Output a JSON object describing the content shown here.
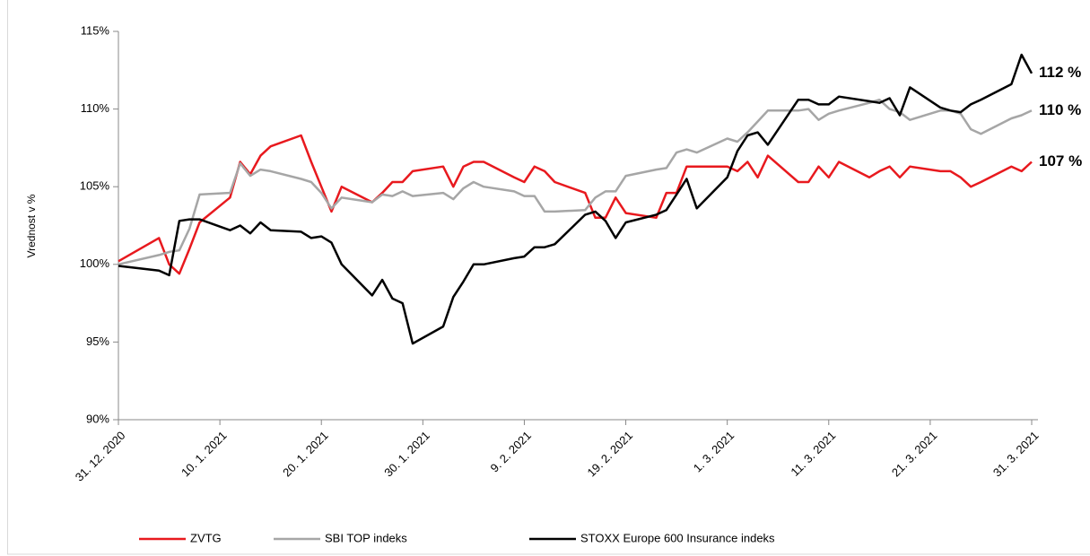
{
  "chart_data": {
    "type": "line",
    "y_label": "Vrednost v %",
    "x": [
      "2020-12-31",
      "2021-01-04",
      "2021-01-05",
      "2021-01-06",
      "2021-01-07",
      "2021-01-08",
      "2021-01-11",
      "2021-01-12",
      "2021-01-13",
      "2021-01-14",
      "2021-01-15",
      "2021-01-18",
      "2021-01-19",
      "2021-01-20",
      "2021-01-21",
      "2021-01-22",
      "2021-01-25",
      "2021-01-26",
      "2021-01-27",
      "2021-01-28",
      "2021-01-29",
      "2021-02-01",
      "2021-02-02",
      "2021-02-03",
      "2021-02-04",
      "2021-02-05",
      "2021-02-08",
      "2021-02-09",
      "2021-02-10",
      "2021-02-11",
      "2021-02-12",
      "2021-02-15",
      "2021-02-16",
      "2021-02-17",
      "2021-02-18",
      "2021-02-19",
      "2021-02-22",
      "2021-02-23",
      "2021-02-24",
      "2021-02-25",
      "2021-02-26",
      "2021-03-01",
      "2021-03-02",
      "2021-03-03",
      "2021-03-04",
      "2021-03-05",
      "2021-03-08",
      "2021-03-09",
      "2021-03-10",
      "2021-03-11",
      "2021-03-12",
      "2021-03-15",
      "2021-03-16",
      "2021-03-17",
      "2021-03-18",
      "2021-03-19",
      "2021-03-22",
      "2021-03-23",
      "2021-03-24",
      "2021-03-25",
      "2021-03-26",
      "2021-03-29",
      "2021-03-30",
      "2021-03-31"
    ],
    "series": [
      {
        "name": "ZVTG",
        "color": "#e8191e",
        "values": [
          100.2,
          101.7,
          100,
          99.4,
          101,
          102.7,
          104.3,
          106.6,
          105.8,
          107,
          107.6,
          108.3,
          106.6,
          105,
          103.4,
          105,
          104,
          104.6,
          105.3,
          105.3,
          106,
          106.3,
          105,
          106.3,
          106.6,
          106.6,
          105.6,
          105.3,
          106.3,
          106,
          105.3,
          104.6,
          103,
          103,
          104.3,
          103.3,
          103,
          104.6,
          104.6,
          106.3,
          106.3,
          106.3,
          106,
          106.6,
          105.6,
          107,
          105.3,
          105.3,
          106.3,
          105.6,
          106.6,
          105.6,
          106,
          106.3,
          105.6,
          106.3,
          106,
          106,
          105.6,
          105,
          105.3,
          106.3,
          106,
          106.6
        ]
      },
      {
        "name": "SBI TOP indeks",
        "color": "#a6a6a6",
        "values": [
          100,
          100.6,
          100.8,
          100.9,
          102.3,
          104.5,
          104.6,
          106.5,
          105.7,
          106.1,
          106,
          105.5,
          105.3,
          104.6,
          103.6,
          104.3,
          104,
          104.5,
          104.4,
          104.7,
          104.4,
          104.6,
          104.2,
          104.9,
          105.3,
          105,
          104.7,
          104.4,
          104.4,
          103.4,
          103.4,
          103.5,
          104.3,
          104.7,
          104.7,
          105.7,
          106.1,
          106.2,
          107.2,
          107.4,
          107.2,
          108.1,
          107.9,
          108.5,
          109.2,
          109.9,
          109.9,
          110,
          109.3,
          109.7,
          109.9,
          110.4,
          110.6,
          110,
          109.8,
          109.3,
          109.9,
          109.9,
          109.7,
          108.7,
          108.4,
          109.4,
          109.6,
          109.9
        ]
      },
      {
        "name": "STOXX Europe 600 Insurance indeks",
        "color": "#000000",
        "values": [
          99.9,
          99.6,
          99.3,
          102.8,
          102.9,
          102.9,
          102.2,
          102.5,
          102,
          102.7,
          102.2,
          102.1,
          101.7,
          101.8,
          101.4,
          100,
          98,
          99,
          97.8,
          97.5,
          94.9,
          96,
          97.9,
          98.9,
          100,
          100,
          100.4,
          100.5,
          101.1,
          101.1,
          101.3,
          103.2,
          103.4,
          102.8,
          101.7,
          102.7,
          103.2,
          103.5,
          104.5,
          105.5,
          103.6,
          105.6,
          107.3,
          108.3,
          108.5,
          107.7,
          110.6,
          110.6,
          110.3,
          110.3,
          110.8,
          110.5,
          110.4,
          110.7,
          109.6,
          111.4,
          110.1,
          109.9,
          109.8,
          110.3,
          110.6,
          111.6,
          113.5,
          112.3
        ]
      }
    ],
    "annotations": [
      {
        "text": "112 %",
        "y": 112.3,
        "color": "#000000"
      },
      {
        "text": "110 %",
        "y": 109.9,
        "color": "#a6a6a6"
      },
      {
        "text": "107 %",
        "y": 106.6,
        "color": "#e8191e"
      }
    ],
    "xlim": [
      "2020-12-31",
      "2021-03-31"
    ],
    "xticks": [
      {
        "value": "2020-12-31",
        "label": "31. 12. 2020"
      },
      {
        "value": "2021-01-10",
        "label": "10. 1. 2021"
      },
      {
        "value": "2021-01-20",
        "label": "20. 1. 2021"
      },
      {
        "value": "2021-01-30",
        "label": "30. 1. 2021"
      },
      {
        "value": "2021-02-09",
        "label": "9. 2. 2021"
      },
      {
        "value": "2021-02-19",
        "label": "19. 2. 2021"
      },
      {
        "value": "2021-03-01",
        "label": "1. 3. 2021"
      },
      {
        "value": "2021-03-11",
        "label": "11. 3. 2021"
      },
      {
        "value": "2021-03-21",
        "label": "21. 3. 2021"
      },
      {
        "value": "2021-03-31",
        "label": "31. 3. 2021"
      }
    ],
    "ylim": [
      90,
      115
    ],
    "yticks": [
      {
        "value": 90,
        "label": "90%"
      },
      {
        "value": 95,
        "label": "95%"
      },
      {
        "value": 100,
        "label": "100%"
      },
      {
        "value": 105,
        "label": "105%"
      },
      {
        "value": 110,
        "label": "110%"
      },
      {
        "value": 115,
        "label": "115%"
      }
    ],
    "grid": false,
    "legend": "bottom"
  }
}
